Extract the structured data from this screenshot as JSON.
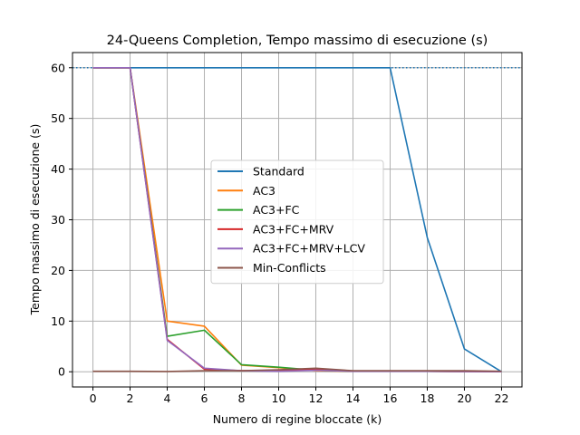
{
  "chart_data": {
    "type": "line",
    "title": "24-Queens Completion, Tempo massimo di esecuzione (s)",
    "xlabel": "Numero di regine bloccate (k)",
    "ylabel": "Tempo massimo di esecuzione (s)",
    "xlim": [
      -1.1,
      23.1
    ],
    "ylim": [
      -3,
      63
    ],
    "xticks": [
      "0",
      "2",
      "4",
      "6",
      "8",
      "10",
      "12",
      "14",
      "16",
      "18",
      "20",
      "22"
    ],
    "yticks": [
      "0",
      "10",
      "20",
      "30",
      "40",
      "50",
      "60"
    ],
    "grid": true,
    "legend_position": "center",
    "reference_line": {
      "y": 60,
      "style": "dotted",
      "color": "#1f77b4"
    },
    "x": [
      0,
      2,
      4,
      6,
      8,
      10,
      12,
      14,
      16,
      18,
      20,
      22
    ],
    "series": [
      {
        "name": "Standard",
        "color": "#1f77b4",
        "values": [
          60,
          60,
          60,
          60,
          60,
          60,
          60,
          60,
          60,
          26.5,
          4.5,
          0
        ]
      },
      {
        "name": "AC3",
        "color": "#ff7f0e",
        "values": [
          60,
          60,
          10,
          9,
          1.3,
          0.8,
          0.2,
          0.1,
          0.1,
          0.1,
          0.05,
          0
        ]
      },
      {
        "name": "AC3+FC",
        "color": "#2ca02c",
        "values": [
          60,
          60,
          7,
          8.2,
          1.4,
          0.9,
          0.3,
          0.1,
          0.1,
          0.1,
          0.05,
          0
        ]
      },
      {
        "name": "AC3+FC+MRV",
        "color": "#d62728",
        "values": [
          60,
          60,
          6.4,
          0.5,
          0.2,
          0.2,
          0.5,
          0.1,
          0.1,
          0.1,
          0.05,
          0
        ]
      },
      {
        "name": "AC3+FC+MRV+LCV",
        "color": "#9467bd",
        "values": [
          60,
          60,
          6.2,
          0.7,
          0.2,
          0.1,
          0.3,
          0.1,
          0.1,
          0.1,
          0.05,
          0
        ]
      },
      {
        "name": "Min-Conflicts",
        "color": "#8c564b",
        "values": [
          0.1,
          0.1,
          0.05,
          0.2,
          0.2,
          0.4,
          0.7,
          0.2,
          0.2,
          0.2,
          0.2,
          0.1
        ]
      }
    ]
  }
}
